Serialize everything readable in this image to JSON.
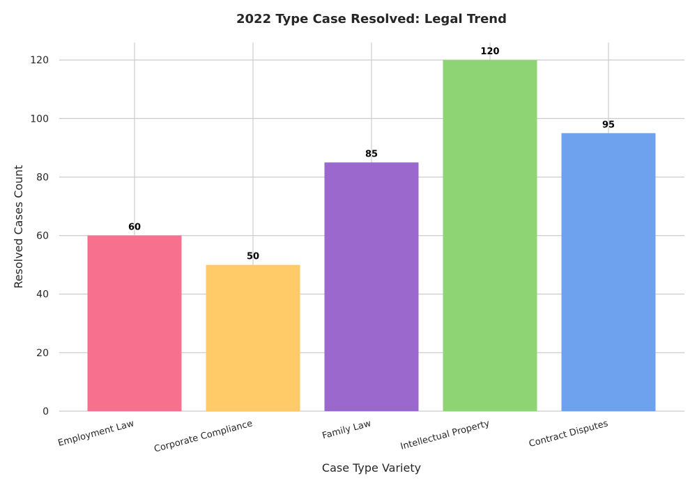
{
  "chart_data": {
    "type": "bar",
    "title": "2022 Type Case Resolved: Legal Trend",
    "xlabel": "Case Type Variety",
    "ylabel": "Resolved Cases Count",
    "categories": [
      "Employment Law",
      "Corporate Compliance",
      "Family Law",
      "Intellectual Property",
      "Contract Disputes"
    ],
    "values": [
      60,
      50,
      85,
      120,
      95
    ],
    "colors": [
      "#f7708e",
      "#ffca67",
      "#9b69cd",
      "#8ed474",
      "#6fa2ee"
    ],
    "ylim": [
      0,
      126
    ],
    "yticks": [
      0,
      20,
      40,
      60,
      80,
      100,
      120
    ],
    "grid": true,
    "show_value_labels": true
  }
}
